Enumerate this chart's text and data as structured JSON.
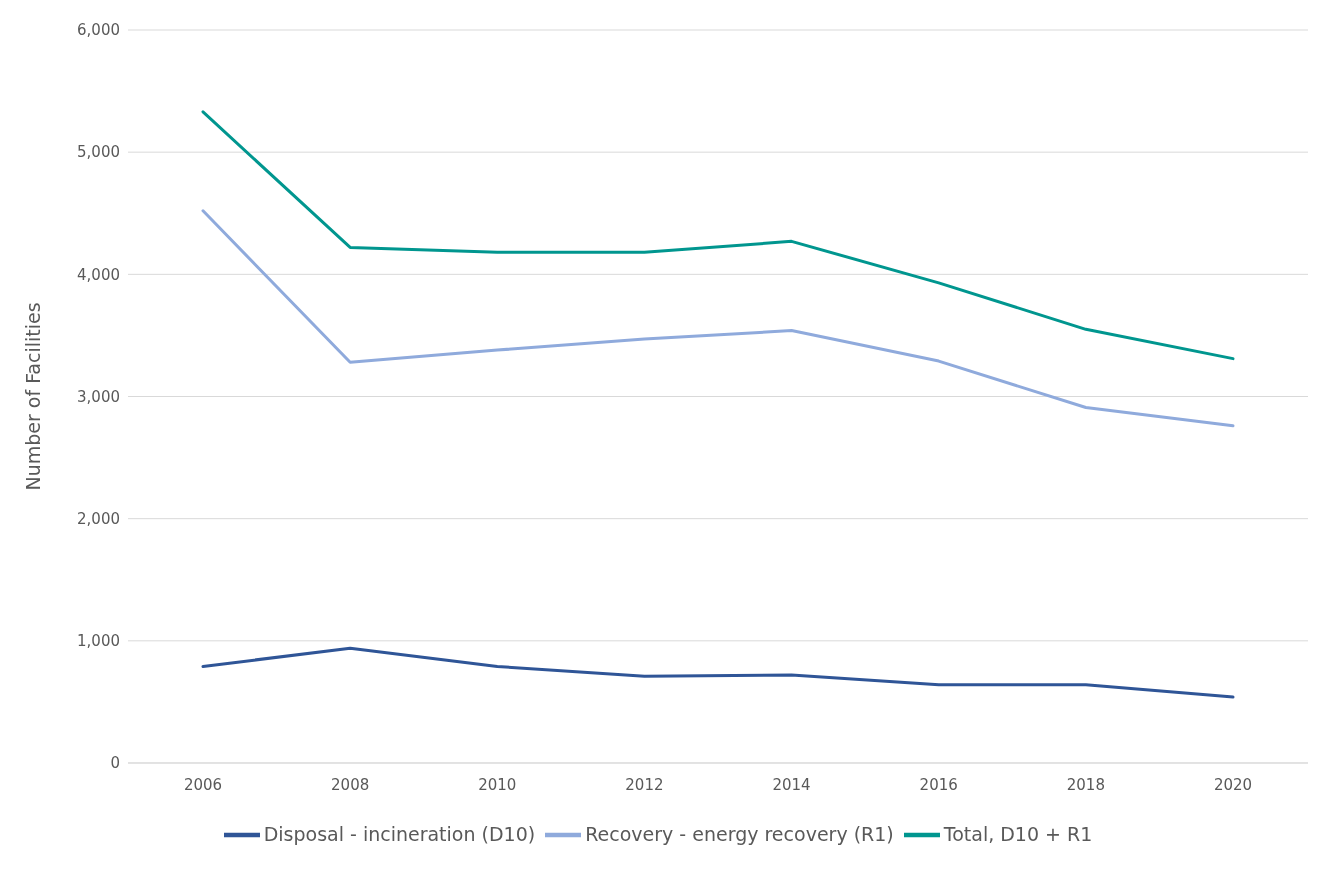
{
  "chart_data": {
    "type": "line",
    "ylabel": "Number of Facilities",
    "categories": [
      "2006",
      "2008",
      "2010",
      "2012",
      "2014",
      "2016",
      "2018",
      "2020"
    ],
    "series": [
      {
        "name": "Disposal - incineration (D10)",
        "color": "#2f5597",
        "values": [
          790,
          940,
          790,
          710,
          720,
          640,
          640,
          540
        ]
      },
      {
        "name": "Recovery - energy recovery (R1)",
        "color": "#8faadc",
        "values": [
          4520,
          3280,
          3380,
          3470,
          3540,
          3290,
          2910,
          2760
        ]
      },
      {
        "name": "Total, D10 + R1",
        "color": "#00968f",
        "values": [
          5330,
          4220,
          4180,
          4180,
          4270,
          3930,
          3550,
          3310
        ]
      }
    ],
    "ylim": [
      0,
      6000
    ],
    "yticks": [
      {
        "value": 0,
        "label": "0"
      },
      {
        "value": 1000,
        "label": "1,000"
      },
      {
        "value": 2000,
        "label": "2,000"
      },
      {
        "value": 3000,
        "label": "3,000"
      },
      {
        "value": 4000,
        "label": "4,000"
      },
      {
        "value": 5000,
        "label": "5,000"
      },
      {
        "value": 6000,
        "label": "6,000"
      }
    ],
    "grid": "y",
    "legend": "bottom",
    "marker": "none",
    "line_style": "solid"
  }
}
